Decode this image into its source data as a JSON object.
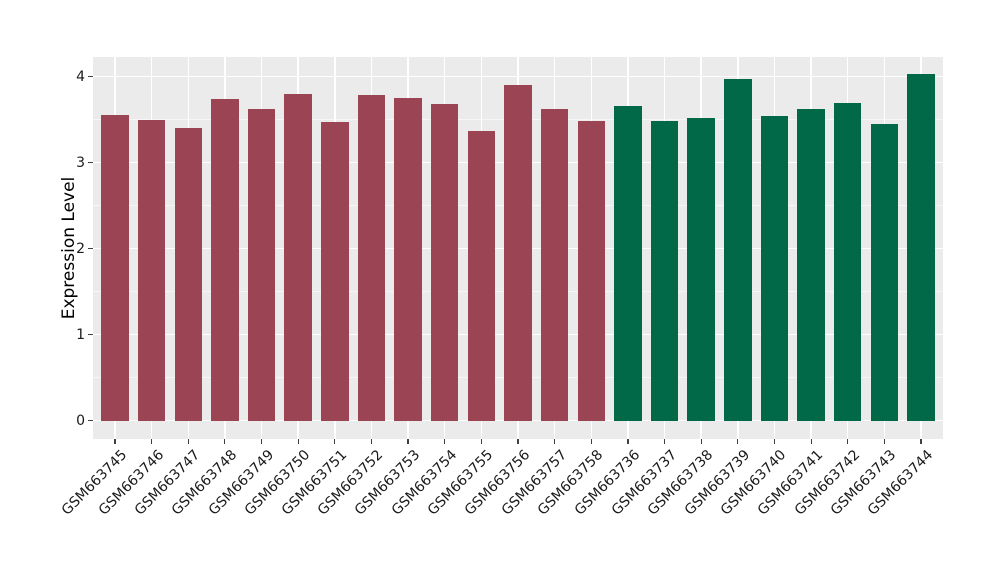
{
  "chart_data": {
    "type": "bar",
    "title": "",
    "xlabel": "",
    "ylabel": "Expression Level",
    "ylim": [
      0,
      4.23
    ],
    "yticks": [
      0,
      1,
      2,
      3,
      4
    ],
    "ytick_labels": [
      "0",
      "1",
      "2",
      "3",
      "4"
    ],
    "grid": "white major gridlines at integer y values, white minor gridlines at half-integer y values, white vertical gridlines at each category center, drawn on gray panel",
    "legend_position": "none",
    "bars": [
      {
        "label": "GSM663745",
        "value": 3.55,
        "group": "maroon"
      },
      {
        "label": "GSM663746",
        "value": 3.5,
        "group": "maroon"
      },
      {
        "label": "GSM663747",
        "value": 3.4,
        "group": "maroon"
      },
      {
        "label": "GSM663748",
        "value": 3.74,
        "group": "maroon"
      },
      {
        "label": "GSM663749",
        "value": 3.63,
        "group": "maroon"
      },
      {
        "label": "GSM663750",
        "value": 3.8,
        "group": "maroon"
      },
      {
        "label": "GSM663751",
        "value": 3.47,
        "group": "maroon"
      },
      {
        "label": "GSM663752",
        "value": 3.79,
        "group": "maroon"
      },
      {
        "label": "GSM663753",
        "value": 3.75,
        "group": "maroon"
      },
      {
        "label": "GSM663754",
        "value": 3.68,
        "group": "maroon"
      },
      {
        "label": "GSM663755",
        "value": 3.37,
        "group": "maroon"
      },
      {
        "label": "GSM663756",
        "value": 3.9,
        "group": "maroon"
      },
      {
        "label": "GSM663757",
        "value": 3.62,
        "group": "maroon"
      },
      {
        "label": "GSM663758",
        "value": 3.48,
        "group": "maroon"
      },
      {
        "label": "GSM663736",
        "value": 3.66,
        "group": "green"
      },
      {
        "label": "GSM663737",
        "value": 3.48,
        "group": "green"
      },
      {
        "label": "GSM663738",
        "value": 3.52,
        "group": "green"
      },
      {
        "label": "GSM663739",
        "value": 3.97,
        "group": "green"
      },
      {
        "label": "GSM663740",
        "value": 3.54,
        "group": "green"
      },
      {
        "label": "GSM663741",
        "value": 3.62,
        "group": "green"
      },
      {
        "label": "GSM663742",
        "value": 3.7,
        "group": "green"
      },
      {
        "label": "GSM663743",
        "value": 3.45,
        "group": "green"
      },
      {
        "label": "GSM663744",
        "value": 4.03,
        "group": "green"
      }
    ],
    "group_colors": {
      "maroon": "#9B4454",
      "green": "#016848"
    },
    "panel_background": "#EBEBEB",
    "grid_color": "#FFFFFF",
    "axis_text_color": "#1A1A1A",
    "figure_background": "#FFFFFF"
  }
}
